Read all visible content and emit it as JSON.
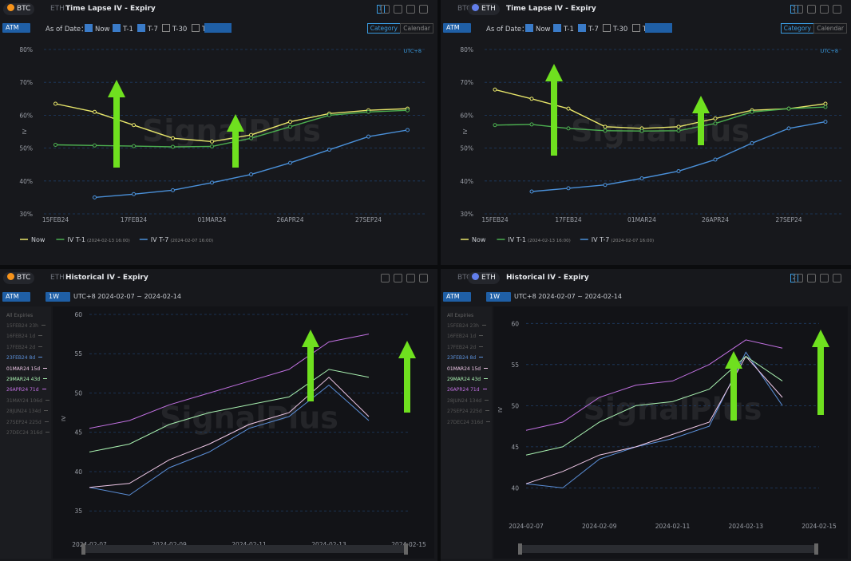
{
  "panels": [
    {
      "tabs": [
        "BTC",
        "ETH"
      ],
      "active_tab": "BTC",
      "page": "1",
      "mode": "ATM",
      "as_of": "As of Date：",
      "checks": [
        "Now",
        "T-1",
        "T-7",
        "T-30",
        "T-"
      ],
      "checked": [
        true,
        true,
        true,
        false,
        false
      ],
      "views": [
        "Category",
        "Calendar"
      ]
    },
    {
      "tabs": [
        "BTC",
        "ETH"
      ],
      "active_tab": "ETH",
      "page": "2",
      "mode": "ATM",
      "as_of": "As of Date：",
      "checks": [
        "Now",
        "T-1",
        "T-7",
        "T-30",
        "T-"
      ],
      "checked": [
        true,
        true,
        true,
        false,
        false
      ],
      "views": [
        "Category",
        "Calendar"
      ]
    },
    {
      "tabs": [
        "BTC",
        "ETH"
      ],
      "active_tab": "BTC",
      "mode": "ATM",
      "period": "1W",
      "range": "UTC+8 2024-02-07 ~ 2024-02-14",
      "expiries_header": "All Expiries",
      "expiries": [
        "15FEB24 23h",
        "16FEB24 1d",
        "17FEB24 2d",
        "23FEB24 8d",
        "01MAR24 15d",
        "29MAR24 43d",
        "26APR24 71d",
        "31MAY24 106d",
        "28JUN24 134d",
        "27SEP24 225d",
        "27DEC24 316d"
      ]
    },
    {
      "tabs": [
        "BTC",
        "ETH"
      ],
      "active_tab": "ETH",
      "page": "2",
      "mode": "ATM",
      "period": "1W",
      "range": "UTC+8 2024-02-07 ~ 2024-02-14",
      "expiries_header": "All Expiries",
      "expiries": [
        "15FEB24 23h",
        "16FEB24 1d",
        "17FEB24 2d",
        "23FEB24 8d",
        "01MAR24 15d",
        "29MAR24 43d",
        "26APR24 71d",
        "28JUN24 134d",
        "27SEP24 225d",
        "27DEC24 316d"
      ]
    }
  ],
  "chart_data": [
    {
      "type": "line",
      "title": "Time Lapse IV - Expiry",
      "timezone": "UTC+8",
      "watermark": "SignalPlus",
      "ylabel": "IV",
      "grid": true,
      "categories": [
        "15FEB24",
        null,
        "17FEB24",
        null,
        "01MAR24",
        null,
        "26APR24",
        null,
        "27SEP24",
        null
      ],
      "ylim": [
        30,
        80
      ],
      "yticks": [
        {
          "value": 30,
          "label": "30%"
        },
        {
          "value": 40,
          "label": "40%"
        },
        {
          "value": 50,
          "label": "50%"
        },
        {
          "value": 60,
          "label": "60%"
        },
        {
          "value": 70,
          "label": "70%"
        },
        {
          "value": 80,
          "label": "80%"
        }
      ],
      "series": [
        {
          "name": "Now",
          "color": "#e8e66a",
          "values": [
            63.5,
            61,
            57,
            53,
            52,
            54,
            58,
            60.5,
            61.5,
            62
          ]
        },
        {
          "name": "IV T-1",
          "timestamp": "(2024-02-13 16:00)",
          "color": "#4caf50",
          "values": [
            51,
            50.8,
            50.6,
            50.4,
            50.5,
            53,
            56.5,
            60,
            61,
            61.5
          ]
        },
        {
          "name": "IV T-7",
          "timestamp": "(2024-02-07 16:00)",
          "color": "#4a90d9",
          "values": [
            null,
            35,
            36,
            37.2,
            39.5,
            42,
            45.5,
            49.5,
            53.5,
            55.5
          ]
        }
      ]
    },
    {
      "type": "line",
      "title": "Time Lapse IV - Expiry",
      "timezone": "UTC+8",
      "watermark": "SignalPlus",
      "ylabel": "IV",
      "grid": true,
      "categories": [
        "15FEB24",
        null,
        "17FEB24",
        null,
        "01MAR24",
        null,
        "26APR24",
        null,
        "27SEP24",
        null
      ],
      "ylim": [
        30,
        80
      ],
      "yticks": [
        {
          "value": 30,
          "label": "30%"
        },
        {
          "value": 40,
          "label": "40%"
        },
        {
          "value": 50,
          "label": "50%"
        },
        {
          "value": 60,
          "label": "60%"
        },
        {
          "value": 70,
          "label": "70%"
        },
        {
          "value": 80,
          "label": "80%"
        }
      ],
      "series": [
        {
          "name": "Now",
          "color": "#e8e66a",
          "values": [
            67.8,
            65,
            62,
            56.5,
            56,
            56.5,
            59,
            61.5,
            62,
            63.5
          ]
        },
        {
          "name": "IV T-1",
          "timestamp": "(2024-02-13 16:00)",
          "color": "#4caf50",
          "values": [
            57,
            57.2,
            56,
            55.3,
            55.2,
            55.3,
            57.5,
            61,
            62,
            62.5
          ]
        },
        {
          "name": "IV T-7",
          "timestamp": "(2024-02-07 16:00)",
          "color": "#4a90d9",
          "values": [
            null,
            36.8,
            37.8,
            38.8,
            40.8,
            43,
            46.5,
            51.5,
            56,
            58
          ]
        }
      ]
    },
    {
      "type": "line",
      "title": "Historical IV - Expiry",
      "watermark": "SignalPlus",
      "ylabel": "IV",
      "grid": true,
      "x": [
        "2024-02-07",
        "2024-02-08",
        "2024-02-09",
        "2024-02-10",
        "2024-02-11",
        "2024-02-12",
        "2024-02-13",
        "2024-02-14"
      ],
      "xlim": [
        "2024-02-07",
        "2024-02-15"
      ],
      "xticks": [
        "2024-02-07",
        "2024-02-09",
        "2024-02-11",
        "2024-02-13",
        "2024-02-15"
      ],
      "ylim": [
        33.5,
        60
      ],
      "yticks": [
        35,
        40,
        45,
        50,
        55,
        60
      ],
      "series": [
        {
          "name": "23FEB24 8d",
          "color": "#5b8fd8",
          "values": [
            38,
            37,
            40.5,
            42.5,
            45.5,
            47,
            51,
            46.5
          ]
        },
        {
          "name": "01MAR24 15d",
          "color": "#f0c8e8",
          "values": [
            38,
            38.5,
            41.5,
            43.5,
            46,
            47.5,
            52,
            47
          ]
        },
        {
          "name": "29MAR24 43d",
          "color": "#a8f0b0",
          "values": [
            42.5,
            43.5,
            46,
            47.5,
            48.5,
            49.5,
            53,
            52
          ]
        },
        {
          "name": "26APR24 71d",
          "color": "#c070e0",
          "values": [
            45.5,
            46.5,
            48.5,
            50,
            51.5,
            53,
            56.5,
            57.5
          ]
        }
      ]
    },
    {
      "type": "line",
      "title": "Historical IV - Expiry",
      "watermark": "SignalPlus",
      "ylabel": "IV",
      "grid": true,
      "x": [
        "2024-02-07",
        "2024-02-08",
        "2024-02-09",
        "2024-02-10",
        "2024-02-11",
        "2024-02-12",
        "2024-02-13",
        "2024-02-14"
      ],
      "xlim": [
        "2024-02-07",
        "2024-02-15"
      ],
      "xticks": [
        "2024-02-07",
        "2024-02-09",
        "2024-02-11",
        "2024-02-13",
        "2024-02-15"
      ],
      "ylim": [
        38,
        61
      ],
      "yticks": [
        40,
        45,
        50,
        55,
        60
      ],
      "series": [
        {
          "name": "23FEB24 8d",
          "color": "#5b8fd8",
          "values": [
            40.5,
            40,
            43.5,
            45,
            46,
            47.5,
            56.5,
            50
          ]
        },
        {
          "name": "01MAR24 15d",
          "color": "#f0c8e8",
          "values": [
            40.5,
            42,
            44,
            45,
            46.5,
            48,
            56,
            51
          ]
        },
        {
          "name": "29MAR24 43d",
          "color": "#a8f0b0",
          "values": [
            44,
            45,
            48,
            50,
            50.5,
            52,
            56,
            53
          ]
        },
        {
          "name": "26APR24 71d",
          "color": "#c070e0",
          "values": [
            47,
            48,
            51,
            52.5,
            53,
            55,
            58,
            57
          ]
        }
      ]
    }
  ]
}
